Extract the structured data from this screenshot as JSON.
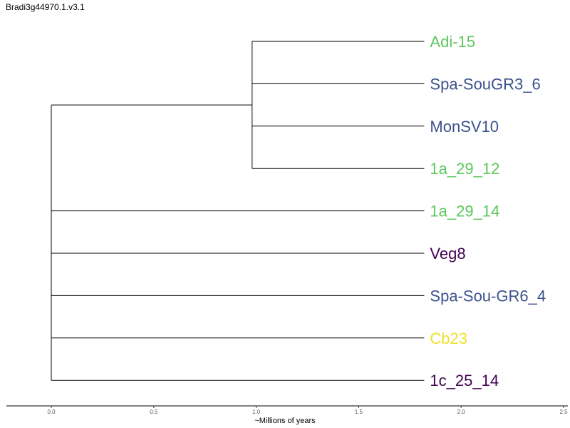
{
  "title": "Bradi3g44970.1.v3.1",
  "axis": {
    "label": "~Millions of years",
    "ticks": [
      "0.0",
      "0.5",
      "1.0",
      "1.5",
      "2.0",
      "2.5"
    ],
    "tick_values": [
      0.0,
      0.5,
      1.0,
      1.5,
      2.0,
      2.5
    ],
    "range": [
      0.0,
      2.5
    ]
  },
  "colors": {
    "green": "#5cc85c",
    "blue": "#3b528b",
    "purple": "#440154",
    "yellow": "#f0e02a",
    "branch": "#000000"
  },
  "tree": {
    "root_time": 0.0,
    "tip_time": 1.82,
    "inner_clade_time": 0.98,
    "leaves": [
      {
        "name": "Adi-15",
        "color": "#5cc85c",
        "clade": "inner"
      },
      {
        "name": "Spa-SouGR3_6",
        "color": "#3b528b",
        "clade": "inner"
      },
      {
        "name": "MonSV10",
        "color": "#3b528b",
        "clade": "inner"
      },
      {
        "name": "1a_29_12",
        "color": "#5cc85c",
        "clade": "inner"
      },
      {
        "name": "1a_29_14",
        "color": "#5cc85c",
        "clade": "root"
      },
      {
        "name": "Veg8",
        "color": "#440154",
        "clade": "root"
      },
      {
        "name": "Spa-Sou-GR6_4",
        "color": "#3b528b",
        "clade": "root"
      },
      {
        "name": "Cb23",
        "color": "#f0e02a",
        "clade": "root"
      },
      {
        "name": "1c_25_14",
        "color": "#440154",
        "clade": "root"
      }
    ]
  }
}
